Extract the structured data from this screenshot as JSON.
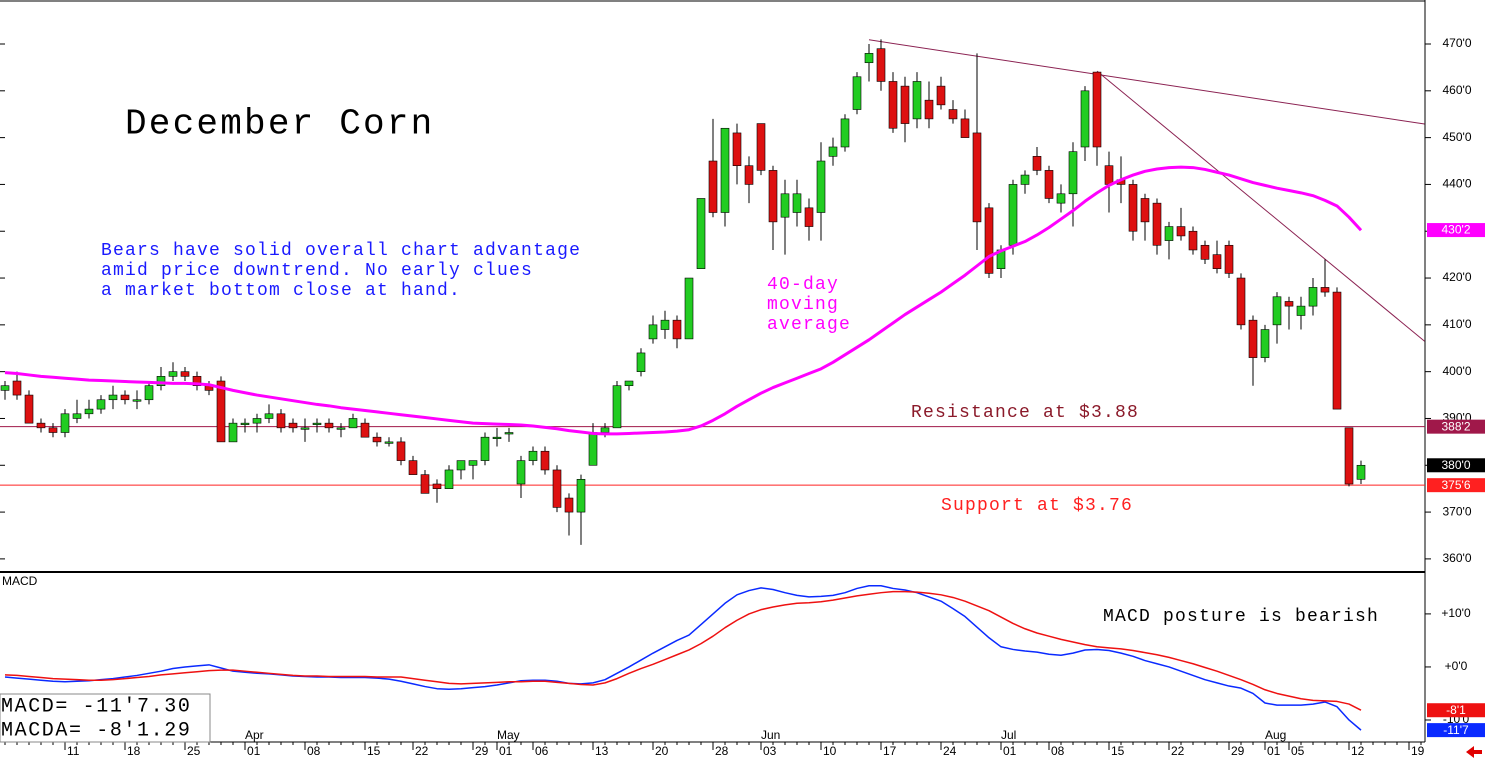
{
  "chart_data": {
    "type": "candlestick",
    "title": "December Corn",
    "annotations": {
      "outlook": [
        "Bears have solid overall chart advantage",
        "amid price downtrend. No early clues",
        "a market bottom close at hand."
      ],
      "moving_average": [
        "40-day",
        "moving",
        "average"
      ],
      "resistance": "Resistance at $3.88",
      "support": "Support at $3.76",
      "macd_note": "MACD posture is bearish"
    },
    "categories": [
      null,
      null,
      null,
      null,
      null,
      "11",
      null,
      null,
      null,
      null,
      "18",
      null,
      null,
      null,
      null,
      "25",
      null,
      null,
      null,
      null,
      "01",
      null,
      null,
      null,
      null,
      "08",
      null,
      null,
      null,
      null,
      "15",
      null,
      null,
      null,
      "22",
      null,
      null,
      null,
      null,
      "29",
      null,
      "01",
      null,
      null,
      "06",
      null,
      null,
      null,
      null,
      "13",
      null,
      null,
      null,
      null,
      "20",
      null,
      null,
      null,
      null,
      "28",
      null,
      null,
      null,
      "03",
      null,
      null,
      null,
      null,
      "10",
      null,
      null,
      null,
      null,
      "17",
      null,
      null,
      null,
      null,
      "24",
      null,
      null,
      null,
      null,
      "01",
      null,
      null,
      null,
      "08",
      null,
      null,
      null,
      null,
      "15",
      null,
      null,
      null,
      null,
      "22",
      null,
      null,
      null,
      null,
      "29",
      null,
      null,
      "01",
      null,
      "05",
      null,
      null,
      null,
      null,
      "12",
      null,
      null,
      null,
      null,
      "19",
      null
    ],
    "month_labels": [
      null,
      null,
      null,
      null,
      null,
      null,
      null,
      null,
      null,
      null,
      null,
      null,
      null,
      null,
      null,
      null,
      null,
      null,
      null,
      null,
      "Apr",
      null,
      null,
      null,
      null,
      null,
      null,
      null,
      null,
      null,
      null,
      null,
      null,
      null,
      null,
      null,
      null,
      null,
      null,
      null,
      null,
      "May",
      null,
      null,
      null,
      null,
      null,
      null,
      null,
      null,
      null,
      null,
      null,
      null,
      null,
      null,
      null,
      null,
      null,
      null,
      null,
      null,
      null,
      "Jun",
      null,
      null,
      null,
      null,
      null,
      null,
      null,
      null,
      null,
      null,
      null,
      null,
      null,
      null,
      null,
      null,
      null,
      null,
      null,
      "Jul",
      null,
      null,
      null,
      null,
      null,
      null,
      null,
      null,
      null,
      null,
      null,
      null,
      null,
      null,
      null,
      null,
      null,
      null,
      null,
      null,
      null,
      "Aug",
      null,
      null,
      null,
      null,
      null,
      null,
      null,
      null,
      null,
      null,
      null,
      null,
      null
    ],
    "open": [
      396,
      398,
      395,
      389,
      388,
      387,
      390,
      391,
      392,
      394,
      395,
      394,
      394,
      397,
      399,
      400,
      399,
      397,
      398,
      385,
      389,
      389,
      390,
      391,
      389,
      388,
      389,
      389,
      388,
      388,
      389,
      386,
      385,
      385,
      381,
      378,
      376,
      375,
      379,
      380,
      381,
      386,
      387,
      376,
      381,
      383,
      379,
      373,
      370,
      380,
      387,
      388,
      397,
      400,
      407,
      409,
      411,
      407,
      422,
      445,
      434,
      451,
      444,
      453,
      443,
      433,
      434,
      435,
      434,
      446,
      448,
      456,
      466,
      469,
      462,
      461,
      454,
      458,
      461,
      456,
      454,
      451,
      435,
      422,
      427,
      440,
      446,
      443,
      436,
      438,
      448,
      464,
      444,
      441,
      440,
      437,
      436,
      428,
      431,
      430,
      427,
      425,
      427,
      420,
      411,
      403,
      410,
      415,
      412,
      414,
      418,
      417,
      388,
      377,
      null,
      null,
      null,
      null,
      null
    ],
    "high": [
      398,
      400,
      396,
      390,
      389,
      392,
      394,
      394,
      395,
      397,
      396,
      396,
      398,
      401,
      402,
      401,
      400,
      398,
      399,
      390,
      390,
      391,
      393,
      392,
      390,
      390,
      390,
      390,
      389,
      391,
      390,
      387,
      386,
      386,
      382,
      379,
      377,
      380,
      381,
      381,
      387,
      388,
      388,
      382,
      384,
      384,
      380,
      374,
      378,
      389,
      389,
      398,
      398,
      405,
      412,
      413,
      412,
      420,
      437,
      454,
      452,
      453,
      446,
      453,
      444,
      441,
      441,
      437,
      449,
      450,
      455,
      464,
      470,
      471,
      464,
      463,
      464,
      462,
      463,
      458,
      456,
      468,
      436,
      427,
      441,
      443,
      448,
      444,
      440,
      449,
      461,
      464,
      447,
      446,
      441,
      438,
      437,
      432,
      435,
      431,
      428,
      428,
      428,
      421,
      412,
      410,
      417,
      416,
      416,
      420,
      424,
      418,
      388,
      381,
      null,
      null,
      null,
      null,
      null
    ],
    "low": [
      394,
      394,
      389,
      387,
      386,
      386,
      389,
      390,
      391,
      392,
      393,
      392,
      393,
      396,
      398,
      398,
      396,
      395,
      385,
      385,
      387,
      387,
      389,
      387,
      387,
      385,
      387,
      387,
      386,
      388,
      386,
      384,
      384,
      380,
      378,
      374,
      372,
      375,
      377,
      377,
      380,
      384,
      385,
      373,
      380,
      378,
      370,
      365,
      363,
      380,
      386,
      388,
      396,
      399,
      406,
      407,
      405,
      407,
      422,
      433,
      431,
      440,
      436,
      442,
      426,
      425,
      431,
      428,
      428,
      444,
      447,
      455,
      462,
      460,
      451,
      449,
      452,
      452,
      456,
      453,
      450,
      426,
      420,
      420,
      425,
      438,
      442,
      436,
      434,
      431,
      445,
      444,
      434,
      436,
      428,
      428,
      425,
      424,
      428,
      425,
      423,
      421,
      420,
      409,
      397,
      402,
      406,
      409,
      409,
      412,
      416,
      392,
      375.5,
      376,
      null,
      null,
      null,
      null,
      null
    ],
    "close": [
      397,
      395,
      389,
      388,
      387,
      391,
      391,
      392,
      394,
      395,
      394,
      394,
      397,
      399,
      400,
      399,
      397,
      396,
      385,
      389,
      389,
      390,
      391,
      388,
      388,
      388,
      389,
      388,
      388,
      390,
      386,
      385,
      385,
      381,
      378,
      374,
      375,
      379,
      381,
      381,
      386,
      386,
      387,
      381,
      383,
      379,
      371,
      370,
      377,
      387,
      388,
      397,
      398,
      404,
      410,
      411,
      407,
      420,
      437,
      434,
      452,
      444,
      440,
      443,
      432,
      438,
      438,
      431,
      445,
      448,
      454,
      463,
      468,
      462,
      452,
      453,
      462,
      454,
      457,
      454,
      450,
      432,
      421,
      426,
      440,
      442,
      443,
      437,
      438,
      447,
      460,
      448,
      440,
      440,
      430,
      432,
      427,
      431,
      429,
      426,
      424,
      422,
      421,
      410,
      403,
      409,
      416,
      414,
      414,
      418,
      417,
      392,
      376,
      380,
      null,
      null,
      null,
      null,
      null
    ],
    "up_color": "#22cc22",
    "down_color": "#dd1111",
    "moving_average": {
      "color": "#ff00ff",
      "values": [
        399.8,
        399.6,
        399.3,
        399.0,
        398.8,
        398.6,
        398.4,
        398.2,
        398.1,
        398.0,
        397.9,
        397.8,
        397.7,
        397.6,
        397.5,
        397.5,
        397.4,
        397.2,
        396.6,
        396.0,
        395.5,
        395.0,
        394.6,
        394.2,
        393.8,
        393.4,
        393.0,
        392.7,
        392.3,
        392.0,
        391.7,
        391.4,
        391.1,
        390.8,
        390.5,
        390.2,
        389.9,
        389.6,
        389.3,
        389.0,
        388.9,
        388.8,
        388.7,
        388.6,
        388.4,
        388.1,
        387.8,
        387.4,
        387.1,
        386.8,
        386.7,
        386.7,
        386.8,
        386.9,
        387.0,
        387.1,
        387.3,
        387.6,
        388.4,
        389.6,
        391.0,
        392.6,
        394.0,
        395.4,
        396.6,
        397.6,
        398.6,
        399.6,
        400.6,
        402.0,
        403.6,
        405.2,
        406.8,
        408.6,
        410.4,
        412.2,
        413.8,
        415.4,
        417.0,
        418.8,
        420.6,
        422.6,
        424.6,
        425.8,
        426.8,
        427.8,
        429.2,
        430.8,
        432.6,
        434.4,
        436.4,
        438.2,
        439.8,
        441.0,
        442.0,
        442.8,
        443.3,
        443.6,
        443.7,
        443.6,
        443.2,
        442.6,
        442.0,
        441.2,
        440.4,
        439.8,
        439.2,
        438.7,
        438.2,
        437.6,
        436.6,
        435.4,
        433.0,
        430.2,
        null,
        null,
        null,
        null,
        null
      ]
    },
    "hlines": [
      {
        "value": 388.25,
        "color": "#a0184a"
      },
      {
        "value": 375.75,
        "color": "#ff2020"
      }
    ],
    "trendlines": [
      {
        "x": [
          72,
          118.3
        ],
        "y": [
          470.9,
          452.9
        ],
        "color": "#8b2252"
      },
      {
        "x": [
          91,
          118.3
        ],
        "y": [
          464.2,
          406.5
        ],
        "color": "#8b2252"
      }
    ],
    "ylim": [
      357.2,
      479.4
    ],
    "yticks": [
      {
        "value": 360,
        "label": "360'0"
      },
      {
        "value": 370,
        "label": "370'0"
      },
      {
        "value": 380,
        "label": "380'0"
      },
      {
        "value": 390,
        "label": "390'0"
      },
      {
        "value": 400,
        "label": "400'0"
      },
      {
        "value": 410,
        "label": "410'0"
      },
      {
        "value": 420,
        "label": "420'0"
      },
      {
        "value": 430,
        "label": "430'0"
      },
      {
        "value": 440,
        "label": "440'0"
      },
      {
        "value": 450,
        "label": "450'0"
      },
      {
        "value": 460,
        "label": "460'0"
      },
      {
        "value": 470,
        "label": "470'0"
      }
    ],
    "price_tags": [
      {
        "value": 430.25,
        "label": "430'2",
        "color": "#ff00ff"
      },
      {
        "value": 388.25,
        "label": "388'2",
        "color": "#a0184a"
      },
      {
        "value": 380,
        "label": "380'0",
        "color": "#000000"
      },
      {
        "value": 375.75,
        "label": "375'6",
        "color": "#ff2020"
      }
    ],
    "macd": {
      "title": "MACD",
      "readouts": [
        "MACD= -11'7.30",
        "MACDA= -8'1.29"
      ],
      "ylim": [
        -14.15,
        17.9
      ],
      "yticks": [
        {
          "value": -10,
          "label": "-10'0"
        },
        {
          "value": 0,
          "label": "+0'0"
        },
        {
          "value": 10,
          "label": "+10'0"
        }
      ],
      "series": [
        {
          "color": "#0a2aff",
          "values": [
            -1.9,
            -2.1,
            -2.3,
            -2.5,
            -2.7,
            -2.8,
            -2.7,
            -2.6,
            -2.4,
            -2.2,
            -1.9,
            -1.6,
            -1.2,
            -0.8,
            -0.3,
            0.0,
            0.2,
            0.4,
            -0.2,
            -0.8,
            -1.0,
            -1.2,
            -1.3,
            -1.5,
            -1.7,
            -1.8,
            -1.9,
            -1.9,
            -2.0,
            -2.0,
            -2.0,
            -2.1,
            -2.3,
            -2.7,
            -3.2,
            -3.7,
            -4.1,
            -4.2,
            -4.1,
            -3.9,
            -3.7,
            -3.4,
            -3.0,
            -2.6,
            -2.5,
            -2.5,
            -2.7,
            -3.1,
            -3.2,
            -3.0,
            -2.4,
            -1.2,
            0.0,
            1.3,
            2.6,
            3.8,
            5.0,
            6.0,
            8.0,
            10.0,
            12.0,
            13.6,
            14.4,
            14.9,
            14.6,
            14.0,
            13.5,
            13.2,
            13.3,
            13.5,
            14.0,
            14.8,
            15.3,
            15.3,
            14.8,
            14.5,
            14.0,
            13.2,
            12.4,
            11.0,
            9.5,
            7.5,
            5.5,
            3.8,
            3.3,
            3.0,
            2.8,
            2.4,
            2.2,
            2.6,
            3.2,
            3.3,
            3.1,
            2.6,
            2.0,
            1.2,
            0.6,
            0.0,
            -0.8,
            -1.6,
            -2.4,
            -3.0,
            -3.6,
            -4.0,
            -5.0,
            -6.8,
            -7.2,
            -7.2,
            -7.2,
            -7.0,
            -6.6,
            -7.5,
            -10.0,
            -11.91,
            null,
            null,
            null,
            null,
            null
          ]
        },
        {
          "color": "#ee1111",
          "values": [
            -1.5,
            -1.6,
            -1.8,
            -2.0,
            -2.2,
            -2.3,
            -2.4,
            -2.5,
            -2.5,
            -2.4,
            -2.2,
            -2.0,
            -1.8,
            -1.5,
            -1.3,
            -1.1,
            -0.9,
            -0.7,
            -0.6,
            -0.6,
            -0.8,
            -1.0,
            -1.2,
            -1.4,
            -1.6,
            -1.7,
            -1.7,
            -1.8,
            -1.8,
            -1.8,
            -1.8,
            -1.9,
            -1.9,
            -1.9,
            -2.2,
            -2.5,
            -2.8,
            -3.1,
            -3.2,
            -3.1,
            -3.0,
            -2.9,
            -2.8,
            -2.8,
            -2.7,
            -2.7,
            -2.9,
            -3.1,
            -3.3,
            -3.4,
            -3.0,
            -2.2,
            -1.2,
            -0.3,
            0.5,
            1.4,
            2.3,
            3.2,
            4.4,
            5.8,
            7.4,
            8.8,
            10.0,
            10.8,
            11.3,
            11.7,
            12.0,
            12.1,
            12.3,
            12.6,
            13.0,
            13.4,
            13.7,
            14.0,
            14.2,
            14.2,
            14.1,
            13.9,
            13.6,
            13.1,
            12.4,
            11.5,
            10.6,
            9.4,
            8.2,
            7.2,
            6.4,
            5.8,
            5.2,
            4.7,
            4.2,
            3.8,
            3.6,
            3.4,
            3.1,
            2.7,
            2.3,
            1.8,
            1.2,
            0.6,
            -0.1,
            -0.8,
            -1.6,
            -2.4,
            -3.3,
            -4.3,
            -5.0,
            -5.5,
            -6.0,
            -6.3,
            -6.4,
            -6.5,
            -7.0,
            -8.16,
            null,
            null,
            null,
            null,
            null
          ]
        }
      ],
      "value_tags": [
        {
          "value": -8.16,
          "label": "-8'1",
          "color": "#ee1111"
        },
        {
          "value": -11.91,
          "label": "-11'7",
          "color": "#0a2aff"
        }
      ]
    }
  }
}
